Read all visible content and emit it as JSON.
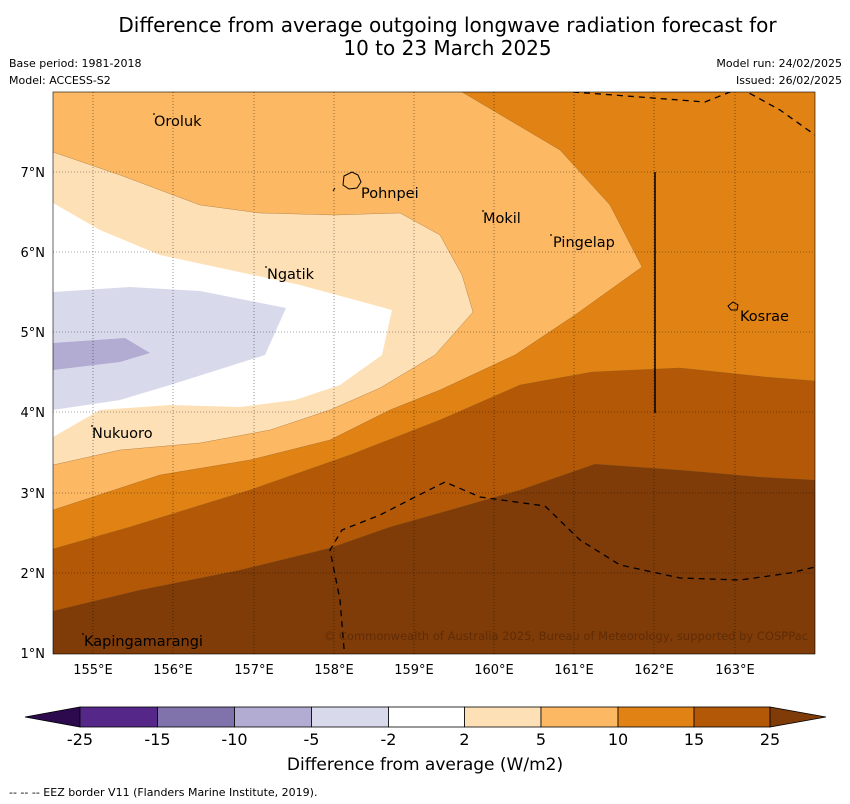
{
  "header": {
    "title_line1": "Difference from average outgoing longwave radiation forecast for",
    "title_line2": "10 to 23 March 2025",
    "base_period": "Base period: 1981-2018",
    "model": "Model: ACCESS-S2",
    "model_run": "Model run: 24/02/2025",
    "issued": "Issued: 26/02/2025"
  },
  "map": {
    "x_ticks": [
      "155°E",
      "156°E",
      "157°E",
      "158°E",
      "159°E",
      "160°E",
      "161°E",
      "162°E",
      "163°E"
    ],
    "y_ticks": [
      "7°N",
      "6°N",
      "5°N",
      "4°N",
      "3°N",
      "2°N",
      "1°N"
    ],
    "places": [
      {
        "name": "Oroluk"
      },
      {
        "name": "Pohnpei"
      },
      {
        "name": "Mokil"
      },
      {
        "name": "Pingelap"
      },
      {
        "name": "Ngatik"
      },
      {
        "name": "Kosrae"
      },
      {
        "name": "Nukuoro"
      },
      {
        "name": "Kapingamarangi"
      }
    ],
    "copyright": "© Commonwealth of Australia 2025, Bureau of Meteorology, supported by COSPPac"
  },
  "colorbar": {
    "labels": [
      "-25",
      "-15",
      "-10",
      "-5",
      "-2",
      "2",
      "5",
      "10",
      "15",
      "25"
    ],
    "colors": [
      "#2d0a4e",
      "#542789",
      "#8073ac",
      "#b2abd2",
      "#d8daeb",
      "#ffffff",
      "#fee0b6",
      "#fdb863",
      "#e08214",
      "#b35806",
      "#7f3b08"
    ],
    "title": "Difference from average (W/m2)"
  },
  "footer": {
    "eez_note": "--  --  -- EEZ border V11 (Flanders Marine Institute, 2019)."
  }
}
